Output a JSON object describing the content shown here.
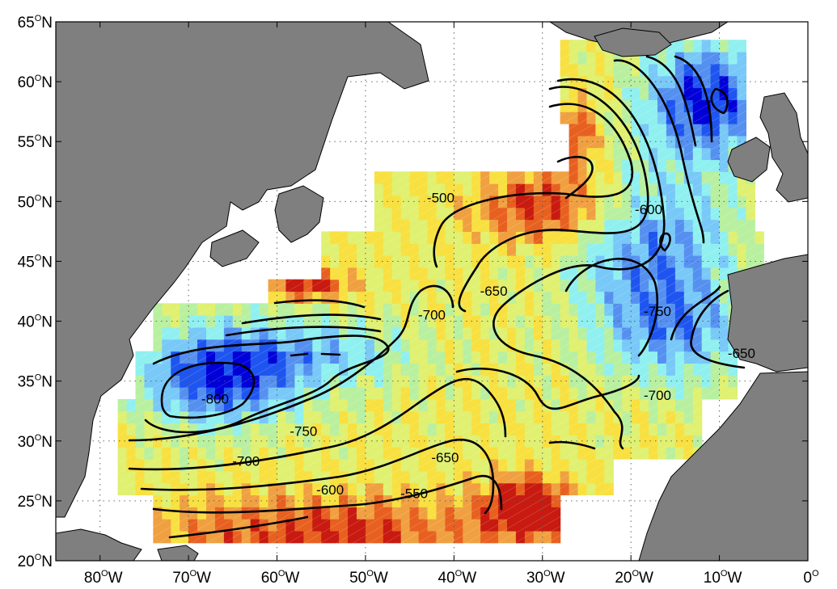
{
  "axes": {
    "y_ticks": [
      {
        "num": "65",
        "hemi": "N"
      },
      {
        "num": "60",
        "hemi": "N"
      },
      {
        "num": "55",
        "hemi": "N"
      },
      {
        "num": "50",
        "hemi": "N"
      },
      {
        "num": "45",
        "hemi": "N"
      },
      {
        "num": "40",
        "hemi": "N"
      },
      {
        "num": "35",
        "hemi": "N"
      },
      {
        "num": "30",
        "hemi": "N"
      },
      {
        "num": "25",
        "hemi": "N"
      },
      {
        "num": "20",
        "hemi": "N"
      }
    ],
    "x_ticks": [
      {
        "num": "80",
        "hemi": "W"
      },
      {
        "num": "70",
        "hemi": "W"
      },
      {
        "num": "60",
        "hemi": "W"
      },
      {
        "num": "50",
        "hemi": "W"
      },
      {
        "num": "40",
        "hemi": "W"
      },
      {
        "num": "30",
        "hemi": "W"
      },
      {
        "num": "20",
        "hemi": "W"
      },
      {
        "num": "10",
        "hemi": "W"
      },
      {
        "num": "0",
        "hemi": ""
      }
    ],
    "degree_symbol": "O",
    "lon_range": [
      -85,
      0
    ],
    "lat_range": [
      20,
      65
    ]
  },
  "contour_labels": [
    {
      "text": "-500",
      "lon": -41.5,
      "lat": 50.0
    },
    {
      "text": "-600",
      "lon": -18.0,
      "lat": 49.0
    },
    {
      "text": "-650",
      "lon": -35.5,
      "lat": 42.2
    },
    {
      "text": "-700",
      "lon": -42.5,
      "lat": 40.2
    },
    {
      "text": "-750",
      "lon": -17.0,
      "lat": 40.5
    },
    {
      "text": "-650",
      "lon": -7.5,
      "lat": 37.0
    },
    {
      "text": "-700",
      "lon": -17.0,
      "lat": 33.5
    },
    {
      "text": "-800",
      "lon": -67.0,
      "lat": 33.2
    },
    {
      "text": "-750",
      "lon": -57.0,
      "lat": 30.5
    },
    {
      "text": "-700",
      "lon": -63.5,
      "lat": 28.0
    },
    {
      "text": "-650",
      "lon": -41.0,
      "lat": 28.3
    },
    {
      "text": "-600",
      "lon": -54.0,
      "lat": 25.6
    },
    {
      "text": "-550",
      "lon": -44.5,
      "lat": 25.3
    }
  ],
  "colors": {
    "land": "#7f7f7f",
    "ocean": "#ffffff",
    "colormap": [
      "#0000d8",
      "#1e55f0",
      "#5590f0",
      "#78c8f8",
      "#90f0f0",
      "#b8f0a0",
      "#e0f070",
      "#f8e040",
      "#f0a040",
      "#e86020",
      "#c81a10"
    ],
    "contour": "#000000"
  }
}
